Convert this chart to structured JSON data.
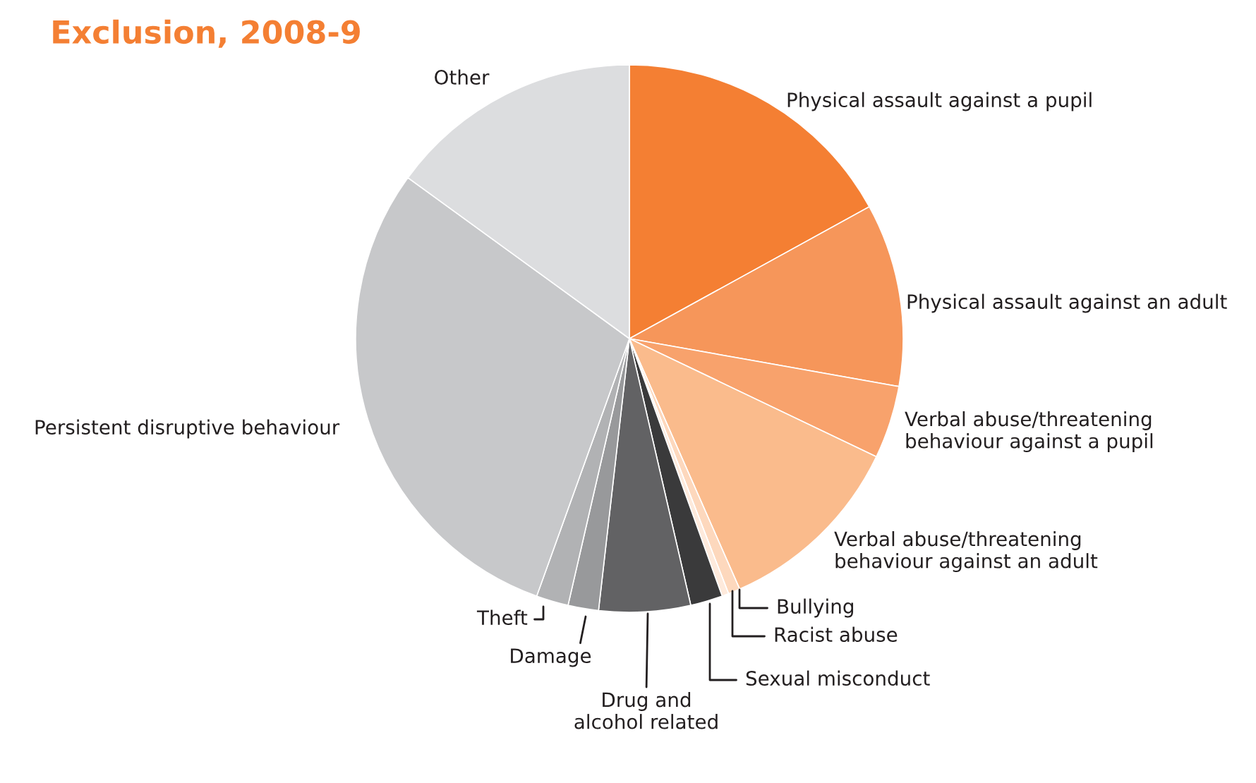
{
  "chart_data": {
    "type": "pie",
    "title": "Exclusion, 2008-9",
    "categories": [
      "Physical assault against a pupil",
      "Physical assault against an adult",
      "Verbal abuse/threatening\nbehaviour against a pupil",
      "Verbal abuse/threatening\nbehaviour against an adult",
      "Bullying",
      "Racist abuse",
      "Sexual misconduct",
      "Drug and\nalcohol related",
      "Damage",
      "Theft",
      "Persistent disruptive behaviour",
      "Other"
    ],
    "values": [
      17,
      10.8,
      4.3,
      11.3,
      0.7,
      0.4,
      1.9,
      5.4,
      1.8,
      1.9,
      29.5,
      15
    ],
    "colors": [
      "#f47f33",
      "#f6965a",
      "#f8a26c",
      "#fabb8c",
      "#fdd8bd",
      "#feeadc",
      "#3a3a3b",
      "#626264",
      "#98999b",
      "#b1b2b4",
      "#c7c8ca",
      "#dcdddf"
    ]
  }
}
